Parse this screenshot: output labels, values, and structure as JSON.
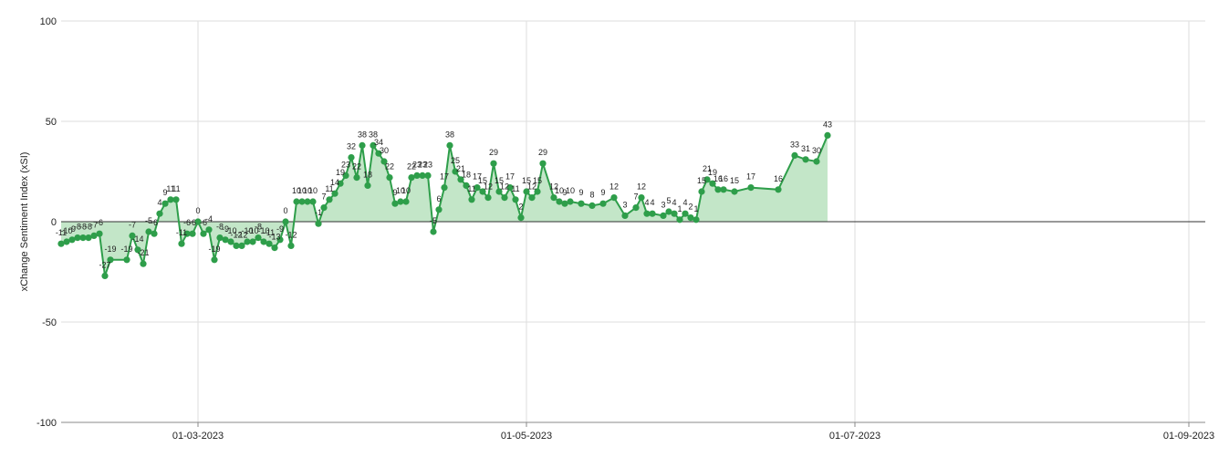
{
  "chart_data": {
    "type": "area",
    "title": "",
    "xlabel": "",
    "ylabel": "xChange Sentiment Index (xSI)",
    "ylim": [
      -100,
      100
    ],
    "y_ticks": [
      "100",
      "50",
      "0",
      "-50",
      "-100"
    ],
    "y_tick_values": [
      100,
      50,
      0,
      -50,
      -100
    ],
    "x_ticks": [
      "01-03-2023",
      "01-05-2023",
      "01-07-2023",
      "01-09-2023"
    ],
    "x_tick_days": [
      59,
      119,
      179,
      240
    ],
    "x_range_days": [
      34,
      243
    ],
    "grid": true,
    "legend": "none",
    "colors": {
      "line": "#2e9e4a",
      "fill": "#c3e6c8",
      "zero": "#333333"
    },
    "series": [
      {
        "x_days": [
          34,
          35,
          36,
          37,
          38,
          39,
          40,
          41,
          42,
          43,
          46,
          47,
          48,
          49,
          50,
          51,
          52,
          53,
          54,
          55,
          56,
          57,
          58,
          59,
          60,
          61,
          62,
          63,
          64,
          65,
          66,
          67,
          68,
          69,
          70,
          71,
          72,
          73,
          74,
          75,
          76,
          77,
          78,
          79,
          80,
          81,
          82,
          83,
          84,
          85,
          86,
          87,
          88,
          89,
          90,
          91,
          92,
          93,
          94,
          95,
          96,
          97,
          98,
          99,
          100,
          101,
          102,
          103,
          104,
          105,
          106,
          107,
          108,
          109,
          110,
          111,
          112,
          113,
          114,
          115,
          116,
          117,
          118,
          119,
          120,
          121,
          122,
          124,
          125,
          126,
          127,
          129,
          131,
          133,
          135,
          137,
          139,
          140,
          141,
          142,
          144,
          145,
          146,
          147,
          148,
          149,
          150,
          151,
          152,
          153,
          154,
          155,
          157,
          160,
          165,
          168,
          170,
          172,
          174
        ],
        "labels": [
          "-11",
          "-10",
          "-9",
          "-8",
          "-8",
          "-8",
          "-7",
          "-6",
          "-27",
          "-19",
          "-19",
          "-7",
          "-14",
          "-21",
          "-5",
          "-6",
          "4",
          "9",
          "11",
          "11",
          "-11",
          "-6",
          "-6",
          "0",
          "-6",
          "-4",
          "-19",
          "-8",
          "-9",
          "-10",
          "-12",
          "-12",
          "-10",
          "-10",
          "-8",
          "-10",
          "-11",
          "-13",
          "-9",
          "0",
          "-12",
          "10",
          "10",
          "10",
          "10",
          "-1",
          "7",
          "11",
          "14",
          "19",
          "23",
          "32",
          "22",
          "38",
          "18",
          "38",
          "34",
          "30",
          "22",
          "9",
          "10",
          "10",
          "22",
          "23",
          "23",
          "23",
          "-5",
          "6",
          "17",
          "38",
          "25",
          "21",
          "18",
          "11",
          "17",
          "15",
          "12",
          "29",
          "15",
          "12",
          "17",
          "11",
          "2",
          "15",
          "12",
          "15",
          "29",
          "12",
          "10",
          "9",
          "10",
          "9",
          "8",
          "9",
          "12",
          "3",
          "7",
          "12",
          "4",
          "4",
          "3",
          "5",
          "4",
          "1",
          "4",
          "2",
          "1",
          "15",
          "21",
          "19",
          "16",
          "16",
          "15",
          "17",
          "16",
          "33",
          "31",
          "30",
          "43"
        ]
      }
    ]
  }
}
